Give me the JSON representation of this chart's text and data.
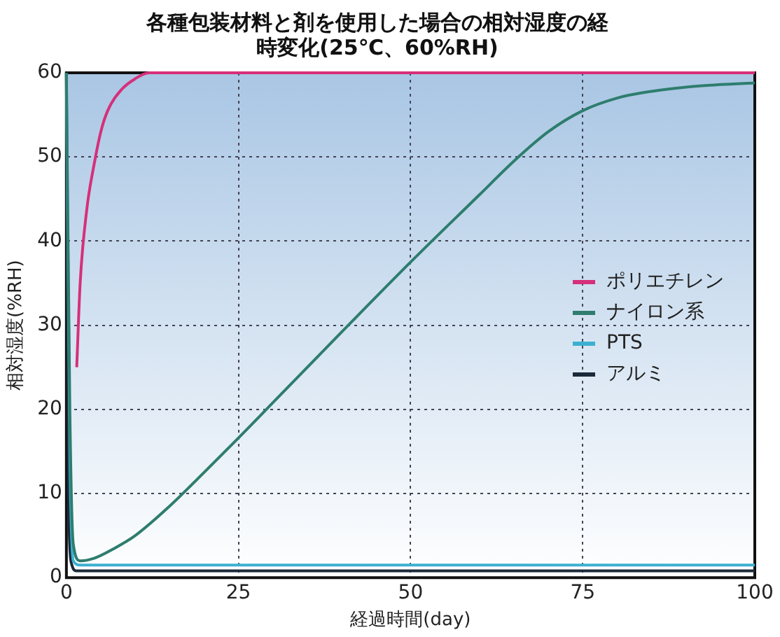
{
  "chart_data": {
    "type": "line",
    "title": "各種包装材料と剤を使用した場合の相対湿度の経時変化(25℃、60%RH)",
    "xlabel": "経過時間(day)",
    "ylabel": "相対湿度(%RH)",
    "xlim": [
      0,
      100
    ],
    "xticks": [
      0,
      25,
      50,
      75,
      100
    ],
    "ylim": [
      0,
      60
    ],
    "yticks": [
      0,
      10,
      20,
      30,
      40,
      50,
      60
    ],
    "grid": true,
    "legend": "right",
    "marker": "none",
    "line_style": "solid",
    "series": [
      {
        "name": "ポリエチレン",
        "color": "#d6307a",
        "x": [
          1.5,
          2,
          3,
          4,
          5,
          6,
          8,
          10,
          12,
          100
        ],
        "values": [
          25,
          35,
          44,
          49,
          53,
          55.5,
          58,
          59.3,
          60,
          60
        ]
      },
      {
        "name": "ナイロン系",
        "color": "#2e7d6e",
        "x": [
          0,
          0.5,
          1,
          2,
          4,
          7,
          10,
          15,
          20,
          25,
          30,
          40,
          50,
          60,
          65,
          70,
          75,
          80,
          85,
          90,
          95,
          100
        ],
        "values": [
          60,
          20,
          4,
          2,
          2.3,
          3.5,
          5,
          8.5,
          12.5,
          16.6,
          20.8,
          29.2,
          37.5,
          45.5,
          49.5,
          53,
          55.5,
          57,
          57.8,
          58.3,
          58.6,
          58.8
        ]
      },
      {
        "name": "PTS",
        "color": "#3cb0d0",
        "x": [
          0,
          0.5,
          1,
          2,
          100
        ],
        "values": [
          60,
          15,
          2,
          1.5,
          1.5
        ]
      },
      {
        "name": "アルミ",
        "color": "#1a2a3a",
        "x": [
          0,
          0.3,
          0.8,
          1.5,
          100
        ],
        "values": [
          60,
          10,
          1.5,
          0.8,
          0.8
        ]
      }
    ]
  }
}
